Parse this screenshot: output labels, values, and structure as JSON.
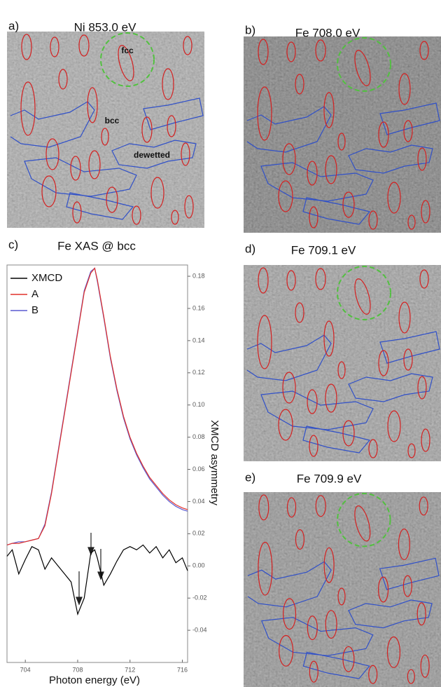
{
  "panels": [
    {
      "label": "a)",
      "title": "Ni 853.0 eV",
      "annotations": [
        "fcc",
        "bcc",
        "dewetted"
      ]
    },
    {
      "label": "b)",
      "title": "Fe 708.0 eV"
    },
    {
      "label": "d)",
      "title": "Fe 709.1 eV"
    },
    {
      "label": "e)",
      "title": "Fe 709.9 eV"
    }
  ],
  "chart_data": {
    "type": "line",
    "label": "c)",
    "title": "Fe XAS @ bcc",
    "x_label": "Photon energy (eV)",
    "y_label": "XMCD asymmetry",
    "x": [
      702.6,
      703,
      703.5,
      704,
      704.5,
      705,
      705.5,
      706,
      706.5,
      707,
      707.5,
      708,
      708.5,
      709,
      709.3,
      709.5,
      710,
      710.5,
      711,
      711.5,
      712,
      712.5,
      713,
      713.5,
      714,
      714.5,
      715,
      715.5,
      716,
      716.4
    ],
    "series": [
      {
        "name": "XMCD",
        "color": "#000000",
        "values": [
          0.006,
          0.01,
          -0.005,
          0.004,
          0.012,
          0.01,
          -0.002,
          0.005,
          0.0,
          -0.005,
          -0.01,
          -0.03,
          -0.02,
          0.008,
          0.01,
          0.005,
          -0.012,
          -0.005,
          0.003,
          0.01,
          0.012,
          0.01,
          0.013,
          0.008,
          0.012,
          0.005,
          0.01,
          0.002,
          0.005,
          -0.003
        ]
      },
      {
        "name": "A",
        "color": "#e0302a",
        "values": [
          0.013,
          0.014,
          0.014,
          0.015,
          0.016,
          0.017,
          0.025,
          0.045,
          0.07,
          0.095,
          0.12,
          0.145,
          0.17,
          0.182,
          0.185,
          0.178,
          0.155,
          0.13,
          0.11,
          0.093,
          0.08,
          0.07,
          0.062,
          0.055,
          0.05,
          0.045,
          0.041,
          0.038,
          0.036,
          0.035
        ]
      },
      {
        "name": "B",
        "color": "#5a5ad0",
        "values": [
          0.013,
          0.014,
          0.015,
          0.015,
          0.016,
          0.017,
          0.026,
          0.046,
          0.071,
          0.096,
          0.121,
          0.146,
          0.171,
          0.183,
          0.185,
          0.177,
          0.154,
          0.129,
          0.109,
          0.092,
          0.079,
          0.069,
          0.061,
          0.054,
          0.049,
          0.044,
          0.04,
          0.037,
          0.035,
          0.034
        ]
      }
    ],
    "xlim": [
      702.6,
      716.4
    ],
    "xticks": [
      704,
      708,
      712,
      716
    ],
    "ylim": [
      -0.06,
      0.187
    ],
    "yticks": [
      -0.04,
      -0.02,
      {
        "value": 0,
        "label": "0.00"
      },
      0.02,
      0.04,
      0.06,
      0.08,
      {
        "value": 0.1,
        "label": "0.10"
      },
      0.12,
      0.14,
      0.16,
      0.18
    ],
    "y_axis_side": "right",
    "legend": "upper left"
  }
}
